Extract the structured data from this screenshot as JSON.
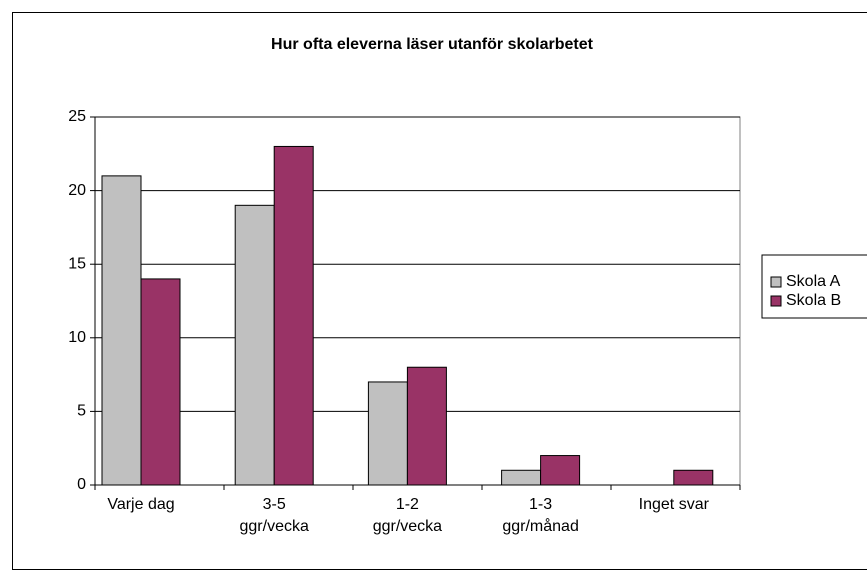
{
  "chart_data": {
    "type": "bar",
    "title": "Hur ofta eleverna läser utanför skolarbetet",
    "categories": [
      [
        "Varje dag"
      ],
      [
        "3-5",
        "ggr/vecka"
      ],
      [
        "1-2",
        "ggr/vecka"
      ],
      [
        "1-3",
        "ggr/månad"
      ],
      [
        "Inget svar"
      ]
    ],
    "series": [
      {
        "name": "Skola A",
        "color": "#c0c0c0",
        "values": [
          21,
          19,
          7,
          1,
          0
        ]
      },
      {
        "name": "Skola B",
        "color": "#993366",
        "values": [
          14,
          23,
          8,
          2,
          1
        ]
      }
    ],
    "ylim": [
      0,
      25
    ],
    "yticks": [
      0,
      5,
      10,
      15,
      20,
      25
    ],
    "grid": true,
    "legend": "right"
  }
}
